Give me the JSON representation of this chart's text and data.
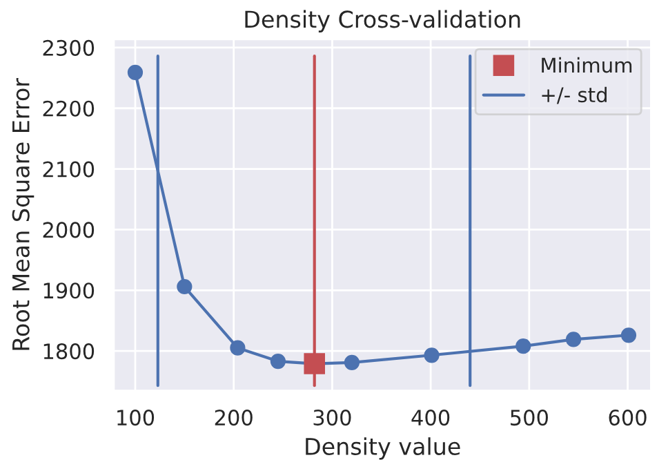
{
  "chart_data": {
    "type": "line",
    "title": "Density Cross-validation",
    "xlabel": "Density value",
    "ylabel": "Root Mean Square Error",
    "xlim": [
      78,
      624
    ],
    "xticks": [
      100,
      200,
      300,
      400,
      500,
      600
    ],
    "ylim": [
      1734,
      2314
    ],
    "yticks": [
      1800,
      1900,
      2000,
      2100,
      2200,
      2300
    ],
    "grid": true,
    "legend": "top right",
    "series": [
      {
        "marker": "circle",
        "color": "#4c72b0",
        "x": [
          100,
          150,
          204,
          245,
          282,
          320,
          401,
          494,
          545,
          601
        ],
        "values": [
          2259,
          1906,
          1805,
          1783,
          1779,
          1781,
          1793,
          1808,
          1819,
          1826
        ]
      },
      {
        "name": "+/- std",
        "marker": "none",
        "color": "#4c72b0",
        "x": [
          123,
          123,
          null,
          440,
          440
        ],
        "values": [
          1743,
          2286,
          null,
          1743,
          2286
        ]
      },
      {
        "marker": "none",
        "color": "#c44e52",
        "x": [
          282,
          282
        ],
        "values": [
          1743,
          2286
        ]
      },
      {
        "type": "scatter",
        "name": "Minimum",
        "marker": "square",
        "color": "#c44e52",
        "x": [
          282
        ],
        "values": [
          1779
        ]
      }
    ]
  }
}
